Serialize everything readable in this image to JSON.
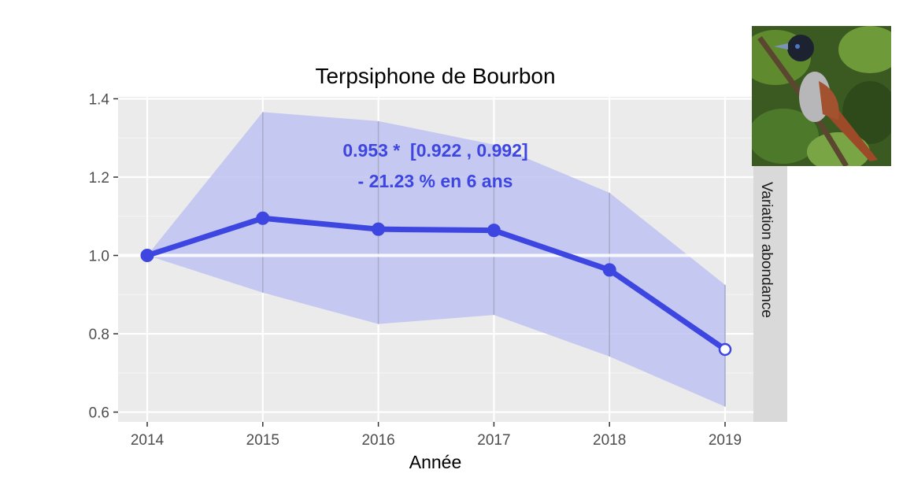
{
  "chart_data": {
    "type": "line",
    "title": "Terpsiphone de Bourbon",
    "xlabel": "Année",
    "ylabel": "",
    "facet_label": "Variation abondance",
    "x": [
      2014,
      2015,
      2016,
      2017,
      2018,
      2019
    ],
    "x_tick_labels": [
      "2014",
      "2015",
      "2016",
      "2017",
      "2018",
      "2019"
    ],
    "y_tick_labels": [
      "0.6",
      "0.8",
      "1.0",
      "1.2",
      "1.4"
    ],
    "ylim": [
      0.575,
      1.405
    ],
    "grid": true,
    "series": [
      {
        "values": [
          1.0,
          1.095,
          1.067,
          1.064,
          0.963,
          0.76
        ],
        "lower": [
          1.0,
          0.905,
          0.825,
          0.848,
          0.742,
          0.614
        ],
        "upper": [
          1.0,
          1.366,
          1.343,
          1.283,
          1.16,
          0.925
        ],
        "last_point_hollow": true
      }
    ],
    "annotation": {
      "line1": "0.953 *  [0.922 , 0.992]",
      "line2": "- 21.23 % en 6 ans"
    },
    "colors": {
      "line": "#3d46e1",
      "ribbon": "#bcbff0",
      "panel": "#ebebeb",
      "strip": "#d9d9d9",
      "reference_line": "#ffffff"
    }
  },
  "photo": {
    "icon": "paradise-flycatcher-bird-photo"
  }
}
